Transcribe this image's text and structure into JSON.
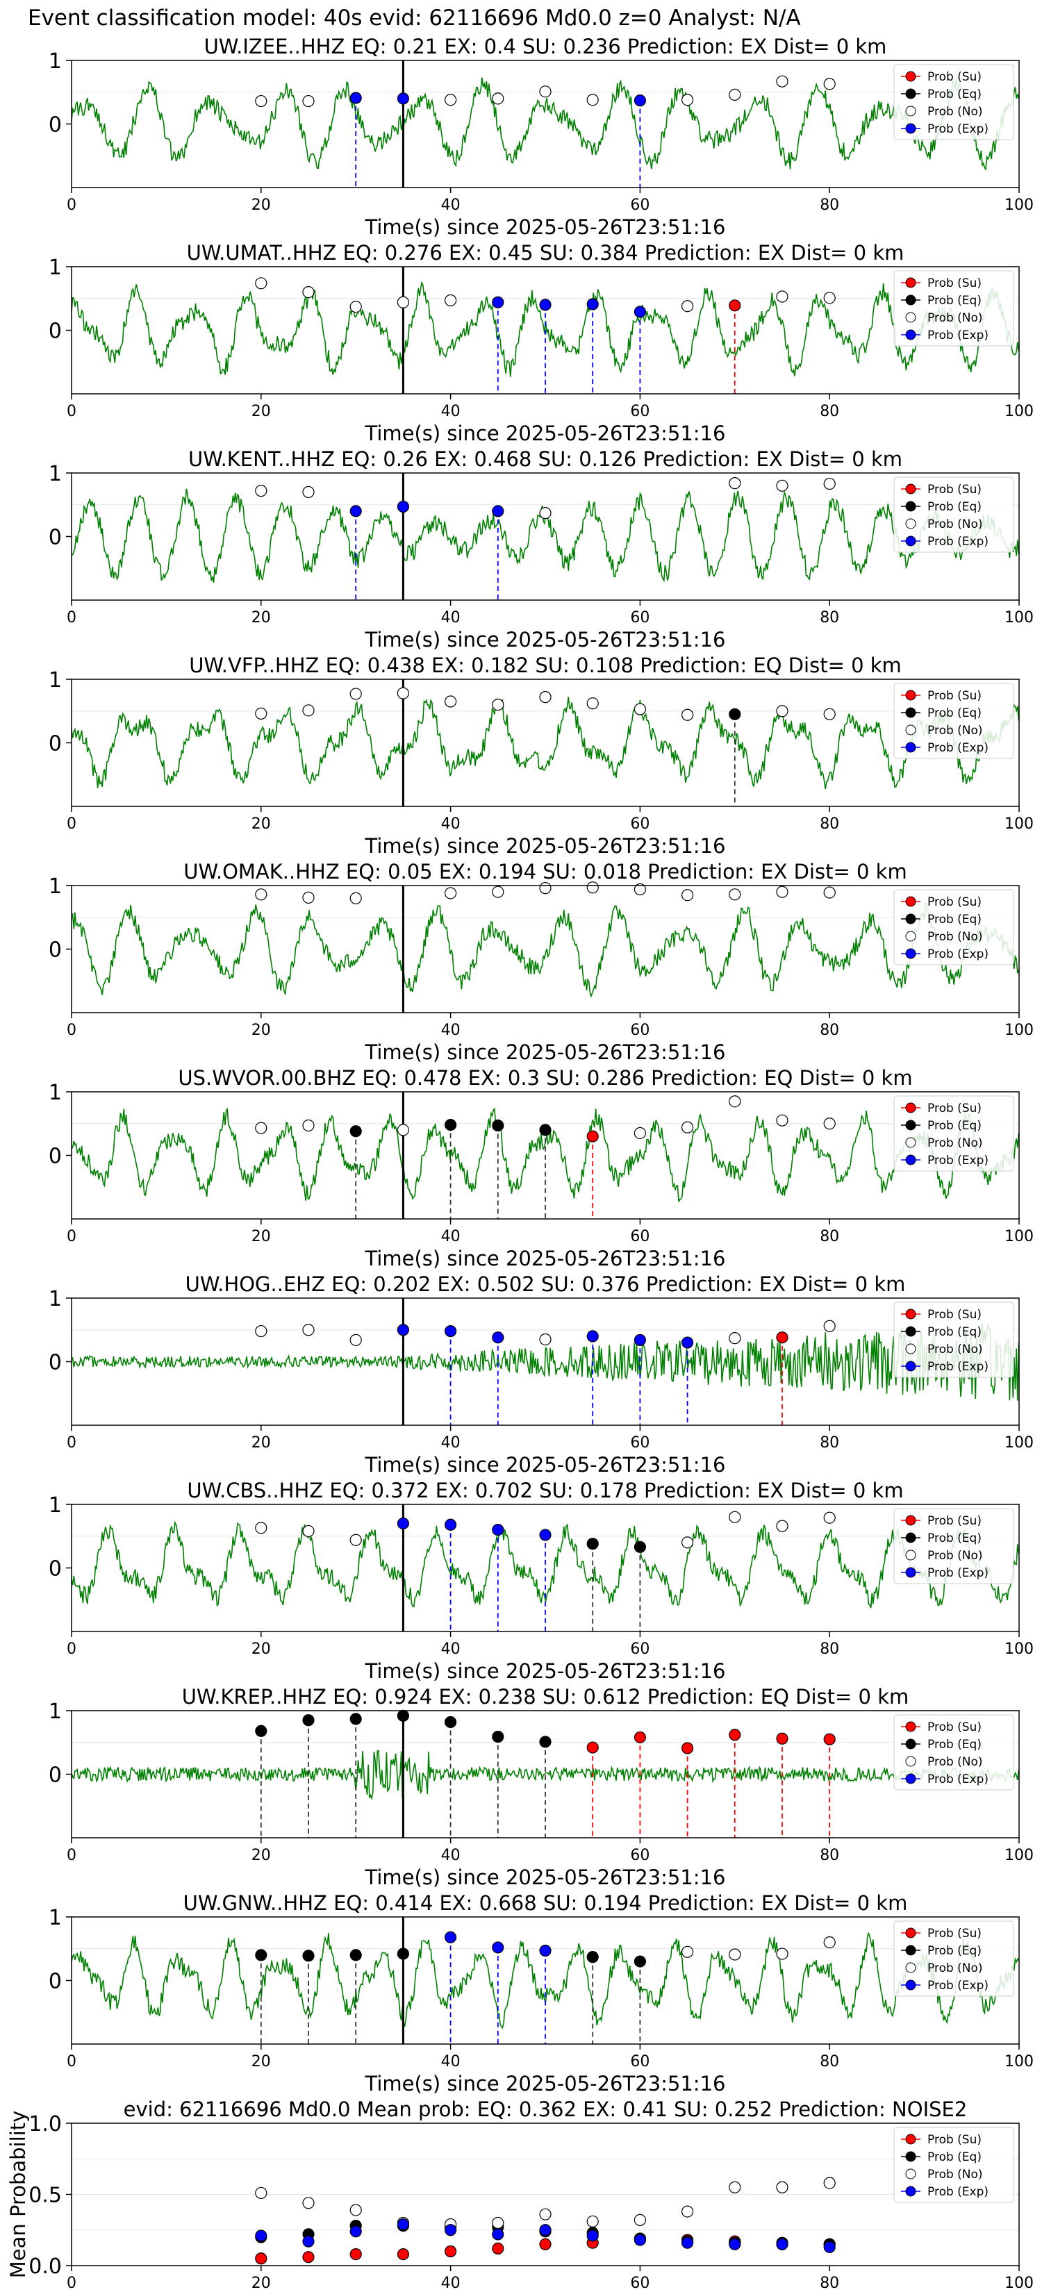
{
  "page": {
    "title": "Event classification model: 40s evid: 62116696 Md0.0 z=0 Analyst: N/A"
  },
  "legend_labels": [
    "Prob (Su)",
    "Prob (Eq)",
    "Prob (No)",
    "Prob (Exp)"
  ],
  "colors": {
    "su": "#ff0000",
    "eq": "#000000",
    "no": "#ffffff",
    "exp": "#0000ff",
    "wave": "#008000"
  },
  "chart_data": [
    {
      "type": "scatter",
      "title": "UW.IZEE..HHZ   EQ: 0.21  EX: 0.4  SU: 0.236   Prediction: EX    Dist= 0 km",
      "xlabel": "Time(s) since 2025-05-26T23:51:16",
      "xlim": [
        0,
        100
      ],
      "ylim": [
        -1,
        1
      ],
      "xticks": [
        "0",
        "20",
        "40",
        "60",
        "80",
        "100"
      ],
      "yticks": [
        "0",
        "1"
      ],
      "origin_line_x": 35,
      "points": [
        {
          "x": 20,
          "y": 0.36,
          "cls": "no"
        },
        {
          "x": 25,
          "y": 0.36,
          "cls": "no"
        },
        {
          "x": 30,
          "y": 0.41,
          "cls": "exp"
        },
        {
          "x": 35,
          "y": 0.4,
          "cls": "exp"
        },
        {
          "x": 40,
          "y": 0.38,
          "cls": "no"
        },
        {
          "x": 45,
          "y": 0.4,
          "cls": "no"
        },
        {
          "x": 50,
          "y": 0.51,
          "cls": "no"
        },
        {
          "x": 55,
          "y": 0.38,
          "cls": "no"
        },
        {
          "x": 60,
          "y": 0.37,
          "cls": "exp"
        },
        {
          "x": 65,
          "y": 0.38,
          "cls": "no"
        },
        {
          "x": 70,
          "y": 0.46,
          "cls": "no"
        },
        {
          "x": 75,
          "y": 0.67,
          "cls": "no"
        },
        {
          "x": 80,
          "y": 0.63,
          "cls": "no"
        }
      ]
    },
    {
      "type": "scatter",
      "title": "UW.UMAT..HHZ   EQ: 0.276  EX: 0.45  SU: 0.384   Prediction: EX    Dist= 0 km",
      "xlabel": "Time(s) since 2025-05-26T23:51:16",
      "xlim": [
        0,
        100
      ],
      "ylim": [
        -1,
        1
      ],
      "xticks": [
        "0",
        "20",
        "40",
        "60",
        "80",
        "100"
      ],
      "yticks": [
        "0",
        "1"
      ],
      "origin_line_x": 35,
      "points": [
        {
          "x": 20,
          "y": 0.74,
          "cls": "no"
        },
        {
          "x": 25,
          "y": 0.6,
          "cls": "no"
        },
        {
          "x": 30,
          "y": 0.37,
          "cls": "no"
        },
        {
          "x": 35,
          "y": 0.44,
          "cls": "no"
        },
        {
          "x": 40,
          "y": 0.47,
          "cls": "no"
        },
        {
          "x": 45,
          "y": 0.44,
          "cls": "exp"
        },
        {
          "x": 50,
          "y": 0.4,
          "cls": "exp"
        },
        {
          "x": 55,
          "y": 0.41,
          "cls": "exp"
        },
        {
          "x": 60,
          "y": 0.29,
          "cls": "exp"
        },
        {
          "x": 65,
          "y": 0.38,
          "cls": "no"
        },
        {
          "x": 70,
          "y": 0.39,
          "cls": "su"
        },
        {
          "x": 75,
          "y": 0.53,
          "cls": "no"
        },
        {
          "x": 80,
          "y": 0.51,
          "cls": "no"
        }
      ]
    },
    {
      "type": "scatter",
      "title": "UW.KENT..HHZ   EQ: 0.26  EX: 0.468  SU: 0.126   Prediction: EX    Dist= 0 km",
      "xlabel": "Time(s) since 2025-05-26T23:51:16",
      "xlim": [
        0,
        100
      ],
      "ylim": [
        -1,
        1
      ],
      "xticks": [
        "0",
        "20",
        "40",
        "60",
        "80",
        "100"
      ],
      "yticks": [
        "0",
        "1"
      ],
      "origin_line_x": 35,
      "points": [
        {
          "x": 20,
          "y": 0.72,
          "cls": "no"
        },
        {
          "x": 25,
          "y": 0.7,
          "cls": "no"
        },
        {
          "x": 30,
          "y": 0.4,
          "cls": "exp"
        },
        {
          "x": 35,
          "y": 0.47,
          "cls": "exp"
        },
        {
          "x": 45,
          "y": 0.4,
          "cls": "exp"
        },
        {
          "x": 50,
          "y": 0.37,
          "cls": "no"
        },
        {
          "x": 70,
          "y": 0.84,
          "cls": "no"
        },
        {
          "x": 75,
          "y": 0.8,
          "cls": "no"
        },
        {
          "x": 80,
          "y": 0.83,
          "cls": "no"
        }
      ]
    },
    {
      "type": "scatter",
      "title": "UW.VFP..HHZ   EQ: 0.438  EX: 0.182  SU: 0.108   Prediction: EQ    Dist= 0 km",
      "xlabel": "Time(s) since 2025-05-26T23:51:16",
      "xlim": [
        0,
        100
      ],
      "ylim": [
        -1,
        1
      ],
      "xticks": [
        "0",
        "20",
        "40",
        "60",
        "80",
        "100"
      ],
      "yticks": [
        "0",
        "1"
      ],
      "origin_line_x": 35,
      "points": [
        {
          "x": 20,
          "y": 0.46,
          "cls": "no"
        },
        {
          "x": 25,
          "y": 0.51,
          "cls": "no"
        },
        {
          "x": 30,
          "y": 0.77,
          "cls": "no"
        },
        {
          "x": 35,
          "y": 0.78,
          "cls": "no"
        },
        {
          "x": 40,
          "y": 0.65,
          "cls": "no"
        },
        {
          "x": 45,
          "y": 0.6,
          "cls": "no"
        },
        {
          "x": 50,
          "y": 0.72,
          "cls": "no"
        },
        {
          "x": 55,
          "y": 0.62,
          "cls": "no"
        },
        {
          "x": 60,
          "y": 0.53,
          "cls": "no"
        },
        {
          "x": 65,
          "y": 0.44,
          "cls": "no"
        },
        {
          "x": 70,
          "y": 0.45,
          "cls": "eq"
        },
        {
          "x": 75,
          "y": 0.5,
          "cls": "no"
        },
        {
          "x": 80,
          "y": 0.45,
          "cls": "no"
        }
      ]
    },
    {
      "type": "scatter",
      "title": "UW.OMAK..HHZ   EQ: 0.05  EX: 0.194  SU: 0.018   Prediction: EX    Dist= 0 km",
      "xlabel": "Time(s) since 2025-05-26T23:51:16",
      "xlim": [
        0,
        100
      ],
      "ylim": [
        -1,
        1
      ],
      "xticks": [
        "0",
        "20",
        "40",
        "60",
        "80",
        "100"
      ],
      "yticks": [
        "0",
        "1"
      ],
      "origin_line_x": 35,
      "points": [
        {
          "x": 20,
          "y": 0.86,
          "cls": "no"
        },
        {
          "x": 25,
          "y": 0.81,
          "cls": "no"
        },
        {
          "x": 30,
          "y": 0.8,
          "cls": "no"
        },
        {
          "x": 40,
          "y": 0.88,
          "cls": "no"
        },
        {
          "x": 45,
          "y": 0.9,
          "cls": "no"
        },
        {
          "x": 50,
          "y": 0.96,
          "cls": "no"
        },
        {
          "x": 55,
          "y": 0.97,
          "cls": "no"
        },
        {
          "x": 60,
          "y": 0.94,
          "cls": "no"
        },
        {
          "x": 65,
          "y": 0.85,
          "cls": "no"
        },
        {
          "x": 70,
          "y": 0.86,
          "cls": "no"
        },
        {
          "x": 75,
          "y": 0.9,
          "cls": "no"
        },
        {
          "x": 80,
          "y": 0.89,
          "cls": "no"
        }
      ]
    },
    {
      "type": "scatter",
      "title": "US.WVOR.00.BHZ   EQ: 0.478  EX: 0.3  SU: 0.286   Prediction: EQ    Dist= 0 km",
      "xlabel": "Time(s) since 2025-05-26T23:51:16",
      "xlim": [
        0,
        100
      ],
      "ylim": [
        -1,
        1
      ],
      "xticks": [
        "0",
        "20",
        "40",
        "60",
        "80",
        "100"
      ],
      "yticks": [
        "0",
        "1"
      ],
      "origin_line_x": 35,
      "points": [
        {
          "x": 20,
          "y": 0.43,
          "cls": "no"
        },
        {
          "x": 25,
          "y": 0.47,
          "cls": "no"
        },
        {
          "x": 30,
          "y": 0.38,
          "cls": "eq"
        },
        {
          "x": 35,
          "y": 0.4,
          "cls": "no"
        },
        {
          "x": 40,
          "y": 0.48,
          "cls": "eq"
        },
        {
          "x": 45,
          "y": 0.47,
          "cls": "eq"
        },
        {
          "x": 50,
          "y": 0.4,
          "cls": "eq"
        },
        {
          "x": 55,
          "y": 0.3,
          "cls": "su"
        },
        {
          "x": 60,
          "y": 0.35,
          "cls": "no"
        },
        {
          "x": 65,
          "y": 0.44,
          "cls": "no"
        },
        {
          "x": 70,
          "y": 0.85,
          "cls": "no"
        },
        {
          "x": 75,
          "y": 0.55,
          "cls": "no"
        },
        {
          "x": 80,
          "y": 0.5,
          "cls": "no"
        }
      ]
    },
    {
      "type": "scatter",
      "title": "UW.HOG..EHZ   EQ: 0.202  EX: 0.502  SU: 0.376   Prediction: EX    Dist= 0 km",
      "xlabel": "Time(s) since 2025-05-26T23:51:16",
      "xlim": [
        0,
        100
      ],
      "ylim": [
        -1,
        1
      ],
      "xticks": [
        "0",
        "20",
        "40",
        "60",
        "80",
        "100"
      ],
      "yticks": [
        "0",
        "1"
      ],
      "origin_line_x": 35,
      "points": [
        {
          "x": 20,
          "y": 0.48,
          "cls": "no"
        },
        {
          "x": 25,
          "y": 0.5,
          "cls": "no"
        },
        {
          "x": 30,
          "y": 0.34,
          "cls": "no"
        },
        {
          "x": 35,
          "y": 0.5,
          "cls": "exp"
        },
        {
          "x": 40,
          "y": 0.48,
          "cls": "exp"
        },
        {
          "x": 45,
          "y": 0.38,
          "cls": "exp"
        },
        {
          "x": 50,
          "y": 0.35,
          "cls": "no"
        },
        {
          "x": 55,
          "y": 0.4,
          "cls": "exp"
        },
        {
          "x": 60,
          "y": 0.34,
          "cls": "exp"
        },
        {
          "x": 65,
          "y": 0.3,
          "cls": "exp"
        },
        {
          "x": 70,
          "y": 0.37,
          "cls": "no"
        },
        {
          "x": 75,
          "y": 0.38,
          "cls": "su"
        },
        {
          "x": 80,
          "y": 0.56,
          "cls": "no"
        }
      ]
    },
    {
      "type": "scatter",
      "title": "UW.CBS..HHZ   EQ: 0.372  EX: 0.702  SU: 0.178   Prediction: EX    Dist= 0 km",
      "xlabel": "Time(s) since 2025-05-26T23:51:16",
      "xlim": [
        0,
        100
      ],
      "ylim": [
        -1,
        1
      ],
      "xticks": [
        "0",
        "20",
        "40",
        "60",
        "80",
        "100"
      ],
      "yticks": [
        "0",
        "1"
      ],
      "origin_line_x": 35,
      "points": [
        {
          "x": 20,
          "y": 0.63,
          "cls": "no"
        },
        {
          "x": 25,
          "y": 0.58,
          "cls": "no"
        },
        {
          "x": 30,
          "y": 0.44,
          "cls": "no"
        },
        {
          "x": 35,
          "y": 0.7,
          "cls": "exp"
        },
        {
          "x": 40,
          "y": 0.68,
          "cls": "exp"
        },
        {
          "x": 45,
          "y": 0.6,
          "cls": "exp"
        },
        {
          "x": 50,
          "y": 0.52,
          "cls": "exp"
        },
        {
          "x": 55,
          "y": 0.38,
          "cls": "eq"
        },
        {
          "x": 60,
          "y": 0.33,
          "cls": "eq"
        },
        {
          "x": 65,
          "y": 0.4,
          "cls": "no"
        },
        {
          "x": 70,
          "y": 0.8,
          "cls": "no"
        },
        {
          "x": 75,
          "y": 0.66,
          "cls": "no"
        },
        {
          "x": 80,
          "y": 0.79,
          "cls": "no"
        }
      ]
    },
    {
      "type": "scatter",
      "title": "UW.KREP..HHZ   EQ: 0.924  EX: 0.238  SU: 0.612   Prediction: EQ    Dist= 0 km",
      "xlabel": "Time(s) since 2025-05-26T23:51:16",
      "xlim": [
        0,
        100
      ],
      "ylim": [
        -1,
        1
      ],
      "xticks": [
        "0",
        "20",
        "40",
        "60",
        "80",
        "100"
      ],
      "yticks": [
        "0",
        "1"
      ],
      "origin_line_x": 35,
      "points": [
        {
          "x": 20,
          "y": 0.68,
          "cls": "eq"
        },
        {
          "x": 25,
          "y": 0.85,
          "cls": "eq"
        },
        {
          "x": 30,
          "y": 0.87,
          "cls": "eq"
        },
        {
          "x": 35,
          "y": 0.92,
          "cls": "eq"
        },
        {
          "x": 40,
          "y": 0.82,
          "cls": "eq"
        },
        {
          "x": 45,
          "y": 0.59,
          "cls": "eq"
        },
        {
          "x": 50,
          "y": 0.51,
          "cls": "eq"
        },
        {
          "x": 55,
          "y": 0.42,
          "cls": "su"
        },
        {
          "x": 60,
          "y": 0.58,
          "cls": "su"
        },
        {
          "x": 65,
          "y": 0.41,
          "cls": "su"
        },
        {
          "x": 70,
          "y": 0.62,
          "cls": "su"
        },
        {
          "x": 75,
          "y": 0.56,
          "cls": "su"
        },
        {
          "x": 80,
          "y": 0.55,
          "cls": "su"
        }
      ]
    },
    {
      "type": "scatter",
      "title": "UW.GNW..HHZ   EQ: 0.414  EX: 0.668  SU: 0.194   Prediction: EX    Dist= 0 km",
      "xlabel": "Time(s) since 2025-05-26T23:51:16",
      "xlim": [
        0,
        100
      ],
      "ylim": [
        -1,
        1
      ],
      "xticks": [
        "0",
        "20",
        "40",
        "60",
        "80",
        "100"
      ],
      "yticks": [
        "0",
        "1"
      ],
      "origin_line_x": 35,
      "points": [
        {
          "x": 20,
          "y": 0.4,
          "cls": "eq"
        },
        {
          "x": 25,
          "y": 0.39,
          "cls": "eq"
        },
        {
          "x": 30,
          "y": 0.4,
          "cls": "eq"
        },
        {
          "x": 35,
          "y": 0.42,
          "cls": "eq"
        },
        {
          "x": 40,
          "y": 0.68,
          "cls": "exp"
        },
        {
          "x": 45,
          "y": 0.52,
          "cls": "exp"
        },
        {
          "x": 50,
          "y": 0.47,
          "cls": "exp"
        },
        {
          "x": 55,
          "y": 0.37,
          "cls": "eq"
        },
        {
          "x": 60,
          "y": 0.3,
          "cls": "eq"
        },
        {
          "x": 65,
          "y": 0.45,
          "cls": "no"
        },
        {
          "x": 70,
          "y": 0.41,
          "cls": "no"
        },
        {
          "x": 75,
          "y": 0.42,
          "cls": "no"
        },
        {
          "x": 80,
          "y": 0.6,
          "cls": "no"
        }
      ]
    },
    {
      "type": "scatter",
      "title": "evid: 62116696  Md0.0   Mean prob:   EQ: 0.362  EX: 0.41  SU: 0.252   Prediction: NOISE2",
      "xlabel": "",
      "ylabel": "Mean Probability",
      "xlim": [
        0,
        100
      ],
      "ylim": [
        0,
        1
      ],
      "xticks": [
        "0",
        "20",
        "40",
        "60",
        "80",
        "100"
      ],
      "yticks": [
        "0.0",
        "0.5",
        "1.0"
      ],
      "series": [
        {
          "name": "Prob (Su)",
          "x": [
            20,
            25,
            30,
            35,
            40,
            45,
            50,
            55,
            60,
            65,
            70,
            75,
            80
          ],
          "y": [
            0.05,
            0.06,
            0.08,
            0.08,
            0.1,
            0.12,
            0.15,
            0.16,
            0.19,
            0.18,
            0.17,
            0.15,
            0.15
          ]
        },
        {
          "name": "Prob (Eq)",
          "x": [
            20,
            25,
            30,
            35,
            40,
            45,
            50,
            55,
            60,
            65,
            70,
            75,
            80
          ],
          "y": [
            0.2,
            0.22,
            0.28,
            0.28,
            0.27,
            0.27,
            0.24,
            0.23,
            0.19,
            0.17,
            0.16,
            0.16,
            0.15
          ]
        },
        {
          "name": "Prob (No)",
          "x": [
            20,
            25,
            30,
            35,
            40,
            45,
            50,
            55,
            60,
            65,
            70,
            75,
            80
          ],
          "y": [
            0.51,
            0.44,
            0.39,
            0.3,
            0.29,
            0.3,
            0.36,
            0.31,
            0.32,
            0.38,
            0.55,
            0.55,
            0.58
          ]
        },
        {
          "name": "Prob (Exp)",
          "x": [
            20,
            25,
            30,
            35,
            40,
            45,
            50,
            55,
            60,
            65,
            70,
            75,
            80
          ],
          "y": [
            0.21,
            0.17,
            0.24,
            0.29,
            0.25,
            0.22,
            0.25,
            0.21,
            0.18,
            0.16,
            0.15,
            0.15,
            0.13
          ]
        }
      ]
    }
  ]
}
